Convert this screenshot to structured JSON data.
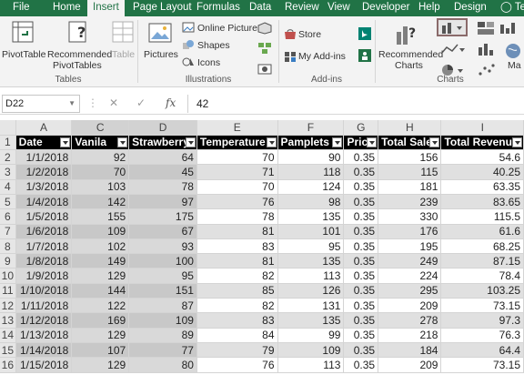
{
  "tabs": [
    {
      "label": "File"
    },
    {
      "label": "Home"
    },
    {
      "label": "Insert",
      "active": true
    },
    {
      "label": "Page Layout"
    },
    {
      "label": "Formulas"
    },
    {
      "label": "Data"
    },
    {
      "label": "Review"
    },
    {
      "label": "View"
    },
    {
      "label": "Developer"
    },
    {
      "label": "Help"
    },
    {
      "label": "Design"
    },
    {
      "label": "Tel"
    }
  ],
  "ribbon": {
    "tables": {
      "pivot": "PivotTable",
      "recommended_line1": "Recommended",
      "recommended_line2": "PivotTables",
      "table": "Table",
      "group": "Tables"
    },
    "illustrations": {
      "pictures": "Pictures",
      "online_pictures": "Online Pictures",
      "shapes": "Shapes",
      "icons": "Icons",
      "group": "Illustrations"
    },
    "addins": {
      "store": "Store",
      "my_addins": "My Add-ins",
      "group": "Add-ins"
    },
    "charts": {
      "recommended_line1": "Recommended",
      "recommended_line2": "Charts",
      "maps": "Ma",
      "group": "Charts"
    }
  },
  "formula_bar": {
    "name_box": "D22",
    "cancel": "✕",
    "enter": "✓",
    "fx": "fx",
    "value": "42"
  },
  "columns": [
    "A",
    "C",
    "D",
    "E",
    "F",
    "G",
    "H",
    "I"
  ],
  "headers": [
    "Date",
    "Vanila",
    "Strawberry",
    "Temperature",
    "Pamplets",
    "Price",
    "Total Sale",
    "Total Revenue"
  ],
  "rows": [
    {
      "n": "1"
    },
    {
      "n": "2",
      "cells": [
        "1/1/2018",
        "92",
        "64",
        "70",
        "90",
        "0.35",
        "156",
        "54.6"
      ]
    },
    {
      "n": "3",
      "cells": [
        "1/2/2018",
        "70",
        "45",
        "71",
        "118",
        "0.35",
        "115",
        "40.25"
      ]
    },
    {
      "n": "4",
      "cells": [
        "1/3/2018",
        "103",
        "78",
        "70",
        "124",
        "0.35",
        "181",
        "63.35"
      ]
    },
    {
      "n": "5",
      "cells": [
        "1/4/2018",
        "142",
        "97",
        "76",
        "98",
        "0.35",
        "239",
        "83.65"
      ]
    },
    {
      "n": "6",
      "cells": [
        "1/5/2018",
        "155",
        "175",
        "78",
        "135",
        "0.35",
        "330",
        "115.5"
      ]
    },
    {
      "n": "7",
      "cells": [
        "1/6/2018",
        "109",
        "67",
        "81",
        "101",
        "0.35",
        "176",
        "61.6"
      ]
    },
    {
      "n": "8",
      "cells": [
        "1/7/2018",
        "102",
        "93",
        "83",
        "95",
        "0.35",
        "195",
        "68.25"
      ]
    },
    {
      "n": "9",
      "cells": [
        "1/8/2018",
        "149",
        "100",
        "81",
        "135",
        "0.35",
        "249",
        "87.15"
      ]
    },
    {
      "n": "10",
      "cells": [
        "1/9/2018",
        "129",
        "95",
        "82",
        "113",
        "0.35",
        "224",
        "78.4"
      ]
    },
    {
      "n": "11",
      "cells": [
        "1/10/2018",
        "144",
        "151",
        "85",
        "126",
        "0.35",
        "295",
        "103.25"
      ]
    },
    {
      "n": "12",
      "cells": [
        "1/11/2018",
        "122",
        "87",
        "82",
        "131",
        "0.35",
        "209",
        "73.15"
      ]
    },
    {
      "n": "13",
      "cells": [
        "1/12/2018",
        "169",
        "109",
        "83",
        "135",
        "0.35",
        "278",
        "97.3"
      ]
    },
    {
      "n": "14",
      "cells": [
        "1/13/2018",
        "129",
        "89",
        "84",
        "99",
        "0.35",
        "218",
        "76.3"
      ]
    },
    {
      "n": "15",
      "cells": [
        "1/14/2018",
        "107",
        "77",
        "79",
        "109",
        "0.35",
        "184",
        "64.4"
      ]
    },
    {
      "n": "16",
      "cells": [
        "1/15/2018",
        "129",
        "80",
        "76",
        "113",
        "0.35",
        "209",
        "73.15"
      ]
    }
  ]
}
